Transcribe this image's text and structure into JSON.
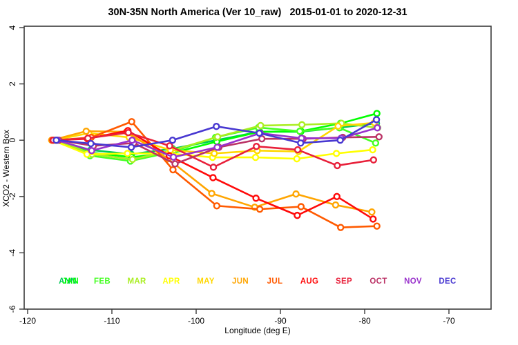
{
  "title": "30N-35N North America (Ver 10_raw)   2015-01-01 to 2020-12-31",
  "chart_data": {
    "type": "line",
    "title": "30N-35N North America (Ver 10_raw)   2015-01-01 to 2020-12-31",
    "xlabel": "Longitude (deg E)",
    "ylabel": "XCO2 - Western Box",
    "xlim": [
      -120.4,
      -65.0
    ],
    "ylim": [
      -6,
      4.05
    ],
    "xticks": [
      -120,
      -110,
      -100,
      -90,
      -80,
      -70
    ],
    "yticks": [
      -6,
      -4,
      -2,
      0,
      2,
      4
    ],
    "grid": false,
    "marker": "open-circle",
    "legend_position": "bottom-inside-row",
    "x": [
      -116.6,
      -112.5,
      -107.7,
      -102.8,
      -97.6,
      -92.5,
      -87.6,
      -82.9,
      -78.6
    ],
    "series": [
      {
        "name": "ANN",
        "color": "#00C957",
        "dx": 0.0,
        "values": [
          0,
          -0.35,
          -0.5,
          -0.3,
          0.0,
          0.3,
          0.3,
          0.45,
          0.6
        ]
      },
      {
        "name": "JAN",
        "color": "#00FF00",
        "dx": 0.05,
        "values": [
          0,
          -0.45,
          -0.6,
          -0.45,
          -0.05,
          0.3,
          0.32,
          0.6,
          0.95
        ]
      },
      {
        "name": "FEB",
        "color": "#44FF22",
        "dx": -0.1,
        "values": [
          0,
          -0.55,
          -0.74,
          -0.42,
          0.1,
          0.45,
          0.32,
          0.44,
          -0.1
        ]
      },
      {
        "name": "MAR",
        "color": "#AAEE22",
        "dx": 0.15,
        "values": [
          0,
          -0.5,
          -0.68,
          -0.35,
          0.12,
          0.52,
          0.55,
          0.6,
          0.44
        ]
      },
      {
        "name": "APR",
        "color": "#FFFF00",
        "dx": -0.45,
        "values": [
          0,
          -0.5,
          -0.47,
          -0.47,
          -0.61,
          -0.61,
          -0.66,
          -0.47,
          -0.34
        ]
      },
      {
        "name": "MAY",
        "color": "#FFD700",
        "dx": -0.25,
        "values": [
          0,
          0.25,
          0.1,
          -0.35,
          -0.47,
          -0.37,
          -0.4,
          0.5,
          0.62
        ]
      },
      {
        "name": "JUN",
        "color": "#FFA500",
        "dx": -0.55,
        "values": [
          0,
          0.32,
          0.3,
          -0.66,
          -1.89,
          -2.38,
          -1.91,
          -2.3,
          -2.55
        ]
      },
      {
        "name": "JUL",
        "color": "#FF5A00",
        "dx": 0.05,
        "values": [
          0,
          0.1,
          0.66,
          -1.05,
          -2.33,
          -2.45,
          -2.36,
          -3.1,
          -3.05
        ]
      },
      {
        "name": "AUG",
        "color": "#FF0A0A",
        "dx": -0.4,
        "values": [
          0,
          0.05,
          0.34,
          -0.55,
          -1.33,
          -2.06,
          -2.67,
          -2.0,
          -2.8
        ]
      },
      {
        "name": "SEP",
        "color": "#E8203A",
        "dx": -0.35,
        "values": [
          0,
          0.07,
          0.27,
          -0.2,
          -0.96,
          -0.22,
          -0.34,
          -0.9,
          -0.7
        ]
      },
      {
        "name": "OCT",
        "color": "#BB3366",
        "dx": 0.3,
        "values": [
          0,
          -0.2,
          -0.1,
          -0.84,
          -0.25,
          0.05,
          0.05,
          0.1,
          0.12
        ]
      },
      {
        "name": "NOV",
        "color": "#9932CC",
        "dx": 0.1,
        "values": [
          0,
          -0.37,
          0.0,
          -0.6,
          -0.25,
          0.25,
          0.07,
          0.07,
          0.44
        ]
      },
      {
        "name": "DEC",
        "color": "#4838D1",
        "dx": 0.0,
        "values": [
          0,
          -0.12,
          -0.25,
          0.0,
          0.49,
          0.25,
          -0.1,
          0.0,
          0.73
        ]
      }
    ]
  },
  "legend": {
    "items": [
      {
        "label": "ANN",
        "color": "#00C957",
        "slot": 0
      },
      {
        "label": "JAN",
        "color": "#00FF00",
        "slot": 0.08
      },
      {
        "label": "FEB",
        "color": "#44FF22",
        "slot": 1
      },
      {
        "label": "MAR",
        "color": "#AAEE22",
        "slot": 2
      },
      {
        "label": "APR",
        "color": "#FFFF00",
        "slot": 3
      },
      {
        "label": "MAY",
        "color": "#FFD700",
        "slot": 4
      },
      {
        "label": "JUN",
        "color": "#FFA500",
        "slot": 5
      },
      {
        "label": "JUL",
        "color": "#FF5A00",
        "slot": 6
      },
      {
        "label": "AUG",
        "color": "#FF0A0A",
        "slot": 7
      },
      {
        "label": "SEP",
        "color": "#E8203A",
        "slot": 8
      },
      {
        "label": "OCT",
        "color": "#BB3366",
        "slot": 9
      },
      {
        "label": "NOV",
        "color": "#9932CC",
        "slot": 10
      },
      {
        "label": "DEC",
        "color": "#4838D1",
        "slot": 11
      }
    ]
  }
}
